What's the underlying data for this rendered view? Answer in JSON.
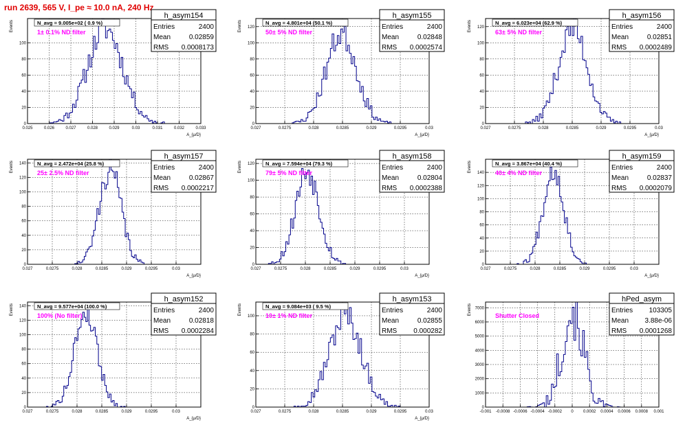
{
  "page": {
    "title": "run 2639,   565 V, I_pe ≈ 10.0 nA, 240 Hz"
  },
  "colors": {
    "title": "#e00000",
    "histogram": "#00008b",
    "annotation": "#ff00ff",
    "grid": "#000000"
  },
  "chart_data": [
    {
      "type": "bar",
      "name": "h_asym154",
      "ylabel": "Events",
      "xlabel": "A_{μ/D}",
      "xlim": [
        0.025,
        0.033
      ],
      "ylim": [
        0,
        130
      ],
      "xticks": [
        0.025,
        0.026,
        0.027,
        0.028,
        0.029,
        0.03,
        0.031,
        0.032,
        0.033
      ],
      "xtick_labels": [
        "0.025",
        "0.026",
        "0.027",
        "0.028",
        "0.029",
        "0.03",
        "0.031",
        "0.032",
        "0.033"
      ],
      "yticks": [
        0,
        20,
        40,
        60,
        80,
        100
      ],
      "ytick_labels": [
        "0",
        "20",
        "40",
        "60",
        "80",
        "100"
      ],
      "navg": "N_avg = 9.005e+02 ( 0.9 %)",
      "filter": "1± 0.1% ND filter",
      "stats": {
        "title": "h_asym154",
        "entries": "2400",
        "mean": "0.02859",
        "rms": "0.0008173"
      },
      "stats_labels": {
        "entries": "Entries",
        "mean": "Mean",
        "rms": "RMS"
      },
      "mean": 0.02859,
      "sigma": 0.00081,
      "peak": 118,
      "wiggle": 4,
      "nbins": 100,
      "seed": 11
    },
    {
      "type": "bar",
      "name": "h_asym155",
      "ylabel": "Events",
      "xlabel": "A_{μ/D}",
      "xlim": [
        0.027,
        0.03
      ],
      "ylim": [
        0,
        130
      ],
      "xticks": [
        0.027,
        0.0275,
        0.028,
        0.0285,
        0.029,
        0.0295,
        0.03
      ],
      "xtick_labels": [
        "0.027",
        "0.0275",
        "0.028",
        "0.0285",
        "0.029",
        "0.0295",
        "0.03"
      ],
      "yticks": [
        0,
        20,
        40,
        60,
        80,
        100,
        120
      ],
      "ytick_labels": [
        "0",
        "20",
        "40",
        "60",
        "80",
        "100",
        "120"
      ],
      "navg": "N_avg = 4.801e+04 (50.1 %)",
      "filter": "50± 5% ND filter",
      "stats": {
        "title": "h_asym155",
        "entries": "2400",
        "mean": "0.02848",
        "rms": "0.0002574"
      },
      "stats_labels": {
        "entries": "Entries",
        "mean": "Mean",
        "rms": "RMS"
      },
      "mean": 0.02848,
      "sigma": 0.00026,
      "peak": 112,
      "wiggle": 4,
      "nbins": 100,
      "seed": 23
    },
    {
      "type": "bar",
      "name": "h_asym156",
      "ylabel": "Events",
      "xlabel": "A_{μ/D}",
      "xlim": [
        0.027,
        0.03
      ],
      "ylim": [
        0,
        130
      ],
      "xticks": [
        0.027,
        0.0275,
        0.028,
        0.0285,
        0.029,
        0.0295,
        0.03
      ],
      "xtick_labels": [
        "0.027",
        "0.0275",
        "0.028",
        "0.0285",
        "0.029",
        "0.0295",
        "0.03"
      ],
      "yticks": [
        0,
        20,
        40,
        60,
        80,
        100,
        120
      ],
      "ytick_labels": [
        "0",
        "20",
        "40",
        "60",
        "80",
        "100",
        "120"
      ],
      "navg": "N_avg = 6.023e+04 (62.9 %)",
      "filter": "63± 5% ND filter",
      "stats": {
        "title": "h_asym156",
        "entries": "2400",
        "mean": "0.02851",
        "rms": "0.0002489"
      },
      "stats_labels": {
        "entries": "Entries",
        "mean": "Mean",
        "rms": "RMS"
      },
      "mean": 0.02851,
      "sigma": 0.00025,
      "peak": 118,
      "wiggle": 4,
      "nbins": 100,
      "seed": 37
    },
    {
      "type": "bar",
      "name": "h_asym157",
      "ylabel": "Events",
      "xlabel": "A_{μ/D}",
      "xlim": [
        0.027,
        0.0305
      ],
      "ylim": [
        0,
        145
      ],
      "xticks": [
        0.027,
        0.0275,
        0.028,
        0.0285,
        0.029,
        0.0295,
        0.03
      ],
      "xtick_labels": [
        "0.027",
        "0.0275",
        "0.028",
        "0.0285",
        "0.029",
        "0.0295",
        "0.03"
      ],
      "yticks": [
        0,
        20,
        40,
        60,
        80,
        100,
        120,
        140
      ],
      "ytick_labels": [
        "0",
        "20",
        "40",
        "60",
        "80",
        "100",
        "120",
        "140"
      ],
      "navg": "N_avg = 2.472e+04 (25.8 %)",
      "filter": "25± 2.5% ND filter",
      "stats": {
        "title": "h_asym157",
        "entries": "2400",
        "mean": "0.02867",
        "rms": "0.0002217"
      },
      "stats_labels": {
        "entries": "Entries",
        "mean": "Mean",
        "rms": "RMS"
      },
      "mean": 0.02867,
      "sigma": 0.00022,
      "peak": 132,
      "wiggle": 4,
      "nbins": 110,
      "seed": 41
    },
    {
      "type": "bar",
      "name": "h_asym158",
      "ylabel": "Events",
      "xlabel": "A_{μ/D}",
      "xlim": [
        0.027,
        0.0305
      ],
      "ylim": [
        0,
        125
      ],
      "xticks": [
        0.027,
        0.0275,
        0.028,
        0.0285,
        0.029,
        0.0295,
        0.03
      ],
      "xtick_labels": [
        "0.027",
        "0.0275",
        "0.028",
        "0.0285",
        "0.029",
        "0.0295",
        "0.03"
      ],
      "yticks": [
        0,
        20,
        40,
        60,
        80,
        100,
        120
      ],
      "ytick_labels": [
        "0",
        "20",
        "40",
        "60",
        "80",
        "100",
        "120"
      ],
      "navg": "N_avg = 7.594e+04 (79.3 %)",
      "filter": "79± 5% ND filter",
      "stats": {
        "title": "h_asym158",
        "entries": "2400",
        "mean": "0.02804",
        "rms": "0.0002388"
      },
      "stats_labels": {
        "entries": "Entries",
        "mean": "Mean",
        "rms": "RMS"
      },
      "mean": 0.02804,
      "sigma": 0.00024,
      "peak": 112,
      "wiggle": 4,
      "nbins": 110,
      "seed": 53
    },
    {
      "type": "bar",
      "name": "h_asym159",
      "ylabel": "Events",
      "xlabel": "A_{μ/D}",
      "xlim": [
        0.027,
        0.0305
      ],
      "ylim": [
        0,
        160
      ],
      "xticks": [
        0.027,
        0.0275,
        0.028,
        0.0285,
        0.029,
        0.0295,
        0.03
      ],
      "xtick_labels": [
        "0.027",
        "0.0275",
        "0.028",
        "0.0285",
        "0.029",
        "0.0295",
        "0.03"
      ],
      "yticks": [
        0,
        20,
        40,
        60,
        80,
        100,
        120,
        140
      ],
      "ytick_labels": [
        "0",
        "20",
        "40",
        "60",
        "80",
        "100",
        "120",
        "140"
      ],
      "navg": "N_avg = 3.867e+04 (40.4 %)",
      "filter": "40± 4% ND filter",
      "stats": {
        "title": "h_asym159",
        "entries": "2400",
        "mean": "0.02837",
        "rms": "0.0002079"
      },
      "stats_labels": {
        "entries": "Entries",
        "mean": "Mean",
        "rms": "RMS"
      },
      "mean": 0.02837,
      "sigma": 0.00021,
      "peak": 145,
      "wiggle": 4,
      "nbins": 110,
      "seed": 67
    },
    {
      "type": "bar",
      "name": "h_asym152",
      "ylabel": "Events",
      "xlabel": "A_{μ/D}",
      "xlim": [
        0.027,
        0.0305
      ],
      "ylim": [
        0,
        145
      ],
      "xticks": [
        0.027,
        0.0275,
        0.028,
        0.0285,
        0.029,
        0.0295,
        0.03
      ],
      "xtick_labels": [
        "0.027",
        "0.0275",
        "0.028",
        "0.0285",
        "0.029",
        "0.0295",
        "0.03"
      ],
      "yticks": [
        0,
        20,
        40,
        60,
        80,
        100,
        120,
        140
      ],
      "ytick_labels": [
        "0",
        "20",
        "40",
        "60",
        "80",
        "100",
        "120",
        "140"
      ],
      "navg": "N_avg = 9.577e+04 (100.0 %)",
      "filter": "100% (No filter)",
      "stats": {
        "title": "h_asym152",
        "entries": "2400",
        "mean": "0.02818",
        "rms": "0.0002284"
      },
      "stats_labels": {
        "entries": "Entries",
        "mean": "Mean",
        "rms": "RMS"
      },
      "mean": 0.02818,
      "sigma": 0.00023,
      "peak": 133,
      "wiggle": 4,
      "nbins": 110,
      "seed": 79
    },
    {
      "type": "bar",
      "name": "h_asym153",
      "ylabel": "Events",
      "xlabel": "A_{μ/D}",
      "xlim": [
        0.027,
        0.03
      ],
      "ylim": [
        0,
        115
      ],
      "xticks": [
        0.027,
        0.0275,
        0.028,
        0.0285,
        0.029,
        0.0295,
        0.03
      ],
      "xtick_labels": [
        "0.027",
        "0.0275",
        "0.028",
        "0.0285",
        "0.029",
        "0.0295",
        "0.03"
      ],
      "yticks": [
        0,
        20,
        40,
        60,
        80,
        100
      ],
      "ytick_labels": [
        "0",
        "20",
        "40",
        "60",
        "80",
        "100"
      ],
      "navg": "N_avg = 9.084e+03 ( 9.5 %)",
      "filter": "10± 1% ND filter",
      "stats": {
        "title": "h_asym153",
        "entries": "2400",
        "mean": "0.02855",
        "rms": "0.000282"
      },
      "stats_labels": {
        "entries": "Entries",
        "mean": "Mean",
        "rms": "RMS"
      },
      "mean": 0.02855,
      "sigma": 0.00028,
      "peak": 100,
      "wiggle": 4,
      "nbins": 100,
      "seed": 97
    },
    {
      "type": "bar",
      "name": "hPed_asym",
      "ylabel": "Events",
      "xlabel": "",
      "xlim": [
        -0.001,
        0.001
      ],
      "ylim": [
        0,
        7400
      ],
      "xticks": [
        -0.001,
        -0.0008,
        -0.0006,
        -0.0004,
        -0.0002,
        0,
        0.0002,
        0.0004,
        0.0006,
        0.0008,
        0.001
      ],
      "xtick_labels": [
        "-0.001",
        "-0.0008",
        "-0.0006",
        "-0.0004",
        "-0.0002",
        "0",
        "0.0002",
        "0.0004",
        "0.0006",
        "0.0008",
        "0.001"
      ],
      "yticks": [
        0,
        1000,
        2000,
        3000,
        4000,
        5000,
        6000,
        7000
      ],
      "ytick_labels": [
        "0",
        "1000",
        "2000",
        "3000",
        "4000",
        "5000",
        "6000",
        "7000"
      ],
      "navg": "",
      "filter": "Shutter Closed",
      "stats": {
        "title": "hPed_asym",
        "entries": "103305",
        "mean": "3.88e-06",
        "rms": "0.0001268"
      },
      "stats_labels": {
        "entries": "Entries",
        "mean": "Mean",
        "rms": "RMS"
      },
      "mean": 3.88e-06,
      "sigma": 0.000127,
      "peak": 6800,
      "wiggle": 60,
      "nbins": 100,
      "seed": 101
    }
  ]
}
